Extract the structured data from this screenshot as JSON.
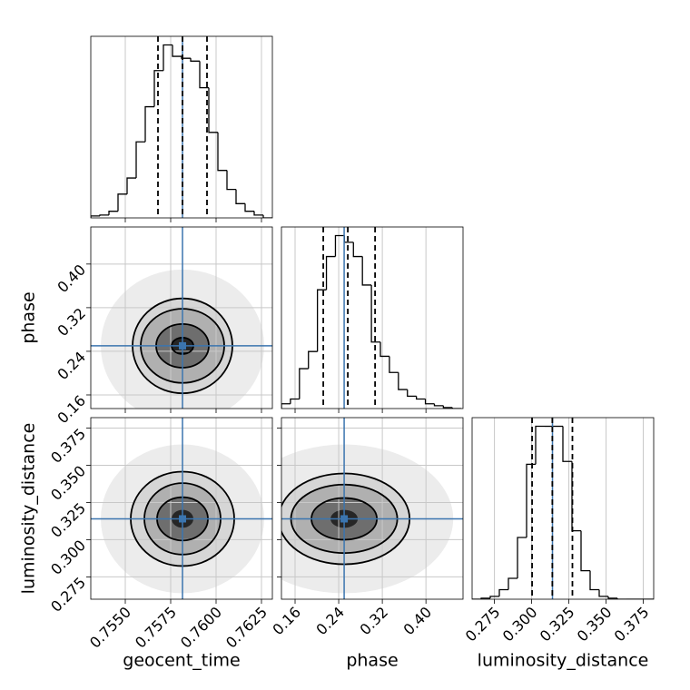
{
  "chart_data": {
    "type": "corner",
    "grid": true,
    "hist_color": "#000000",
    "truth_color": "#3b75af",
    "contour_color": "#000000",
    "parameters": [
      {
        "name": "geocent_time",
        "lim": [
          0.7531,
          0.7631
        ],
        "ticks": [
          {
            "value": 0.755,
            "label": "0.7550"
          },
          0.7575,
          {
            "value": 0.76,
            "label": "0.7600"
          },
          0.7625
        ],
        "truth": 0.75815,
        "quantiles": [
          0.7568,
          0.75815,
          0.7595
        ],
        "bins": [
          0.7531,
          0.7536,
          0.7541,
          0.7546,
          0.7551,
          0.7556,
          0.7561,
          0.7566,
          0.7571,
          0.7576,
          0.7581,
          0.7586,
          0.7591,
          0.7596,
          0.7601,
          0.7606,
          0.7611,
          0.7616,
          0.7621,
          0.7626,
          0.7631
        ],
        "counts": [
          2,
          3,
          7,
          25,
          42,
          80,
          117,
          155,
          182,
          170,
          168,
          165,
          137,
          90,
          50,
          30,
          15,
          7,
          3,
          0
        ]
      },
      {
        "name": "phase",
        "lim": [
          0.135,
          0.468
        ],
        "ticks": [
          0.16,
          0.24,
          0.32,
          {
            "value": 0.4,
            "label": "0.40"
          }
        ],
        "truth": 0.25,
        "quantiles": [
          0.2117,
          0.2567,
          0.3067
        ],
        "bins": [
          0.135,
          0.1515,
          0.168,
          0.1845,
          0.201,
          0.2175,
          0.234,
          0.2505,
          0.267,
          0.2835,
          0.3,
          0.3165,
          0.333,
          0.3495,
          0.366,
          0.3825,
          0.399,
          0.4155,
          0.432,
          0.4485,
          0.465
        ],
        "counts": [
          5,
          10,
          42,
          60,
          125,
          160,
          182,
          175,
          160,
          130,
          70,
          55,
          38,
          20,
          13,
          10,
          5,
          3,
          1,
          0
        ]
      },
      {
        "name": "luminosity_distance",
        "lim": [
          0.26,
          0.382
        ],
        "ticks": [
          0.275,
          {
            "value": 0.3,
            "label": "0.300"
          },
          0.325,
          {
            "value": 0.35,
            "label": "0.350"
          },
          0.375
        ],
        "truth": 0.314,
        "quantiles": [
          0.3003,
          0.3139,
          0.3274
        ],
        "bins": [
          0.26,
          0.2661,
          0.2722,
          0.2783,
          0.2844,
          0.2905,
          0.2966,
          0.3027,
          0.3088,
          0.3149,
          0.321,
          0.3271,
          0.3332,
          0.3393,
          0.3454,
          0.3515,
          0.3576,
          0.3637,
          0.3698,
          0.3759,
          0.382
        ],
        "counts": [
          0,
          1,
          3,
          10,
          22,
          65,
          142,
          182,
          182,
          182,
          145,
          72,
          30,
          10,
          3,
          1,
          0,
          0,
          0,
          0
        ]
      }
    ],
    "pairs": [
      {
        "x": 0,
        "y": 1,
        "density": [
          {
            "rx": 0.0045,
            "ry": 0.14,
            "color": "#ececec"
          },
          {
            "rx": 0.00275,
            "ry": 0.087,
            "color": "#d6d6d6"
          },
          {
            "rx": 0.0023,
            "ry": 0.068,
            "color": "#b0b0b0"
          },
          {
            "rx": 0.00145,
            "ry": 0.04,
            "color": "#6e6e6e"
          },
          {
            "rx": 0.0006,
            "ry": 0.015,
            "color": "#262626"
          }
        ],
        "contours": [
          {
            "rx": 0.00275,
            "ry": 0.087
          },
          {
            "rx": 0.0023,
            "ry": 0.068
          },
          {
            "rx": 0.00145,
            "ry": 0.04
          },
          {
            "rx": 0.0006,
            "ry": 0.015
          }
        ]
      },
      {
        "x": 0,
        "y": 2,
        "density": [
          {
            "rx": 0.0045,
            "ry": 0.05,
            "color": "#ececec"
          },
          {
            "rx": 0.00285,
            "ry": 0.0317,
            "color": "#d6d6d6"
          },
          {
            "rx": 0.0021,
            "ry": 0.024,
            "color": "#b0b0b0"
          },
          {
            "rx": 0.0014,
            "ry": 0.0145,
            "color": "#6e6e6e"
          },
          {
            "rx": 0.0006,
            "ry": 0.006,
            "color": "#262626"
          }
        ],
        "contours": [
          {
            "rx": 0.00285,
            "ry": 0.0317
          },
          {
            "rx": 0.0021,
            "ry": 0.024
          },
          {
            "rx": 0.0014,
            "ry": 0.0145
          }
        ]
      },
      {
        "x": 1,
        "y": 2,
        "density": [
          {
            "rx": 0.2,
            "ry": 0.05,
            "color": "#ececec"
          },
          {
            "rx": 0.12,
            "ry": 0.0305,
            "color": "#d6d6d6"
          },
          {
            "rx": 0.0975,
            "ry": 0.023,
            "color": "#b0b0b0"
          },
          {
            "rx": 0.06,
            "ry": 0.014,
            "color": "#6e6e6e"
          },
          {
            "rx": 0.025,
            "ry": 0.006,
            "color": "#262626"
          }
        ],
        "contours": [
          {
            "rx": 0.12,
            "ry": 0.0305
          },
          {
            "rx": 0.0975,
            "ry": 0.023
          },
          {
            "rx": 0.06,
            "ry": 0.014
          }
        ]
      }
    ]
  }
}
